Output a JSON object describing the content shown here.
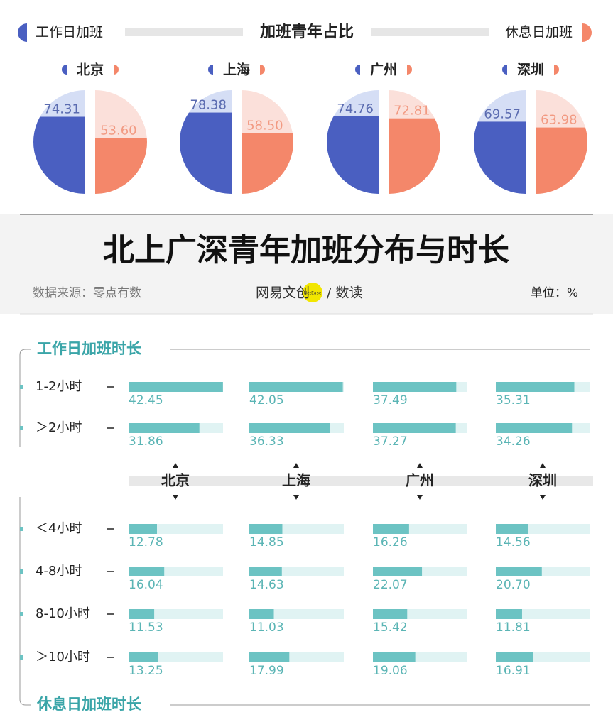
{
  "header": {
    "legend_left": "工作日加班",
    "title": "加班青年占比",
    "legend_right": "休息日加班"
  },
  "cities": [
    "北京",
    "上海",
    "广州",
    "深圳"
  ],
  "pies": [
    {
      "workday": 74.31,
      "workday_label": "74.31",
      "weekend": 53.6,
      "weekend_label": "53.60"
    },
    {
      "workday": 78.38,
      "workday_label": "78.38",
      "weekend": 58.5,
      "weekend_label": "58.50"
    },
    {
      "workday": 74.76,
      "workday_label": "74.76",
      "weekend": 72.81,
      "weekend_label": "72.81"
    },
    {
      "workday": 69.57,
      "workday_label": "69.57",
      "weekend": 63.98,
      "weekend_label": "63.98"
    }
  ],
  "pie_scale": [
    0,
    100
  ],
  "banner": {
    "title": "北上广深青年加班分布与时长",
    "source": "数据来源：零点有数",
    "logo": "网易文创",
    "logo_badge": "NetEase",
    "logo_suffix": "/ 数读",
    "unit": "单位：%"
  },
  "bar_scale": [
    0,
    42.5
  ],
  "workday": {
    "title": "工作日加班时长",
    "rows": [
      {
        "label": "1-2小时",
        "values": [
          42.45,
          42.05,
          37.49,
          35.31
        ],
        "value_labels": [
          "42.45",
          "42.05",
          "37.49",
          "35.31"
        ]
      },
      {
        "label": "＞2小时",
        "values": [
          31.86,
          36.33,
          37.27,
          34.26
        ],
        "value_labels": [
          "31.86",
          "36.33",
          "37.27",
          "34.26"
        ]
      }
    ]
  },
  "weekend": {
    "title": "休息日加班时长",
    "rows": [
      {
        "label": "＜4小时",
        "values": [
          12.78,
          14.85,
          16.26,
          14.56
        ],
        "value_labels": [
          "12.78",
          "14.85",
          "16.26",
          "14.56"
        ]
      },
      {
        "label": "4-8小时",
        "values": [
          16.04,
          14.63,
          22.07,
          20.7
        ],
        "value_labels": [
          "16.04",
          "14.63",
          "22.07",
          "20.70"
        ]
      },
      {
        "label": "8-10小时",
        "values": [
          11.53,
          11.03,
          15.42,
          11.81
        ],
        "value_labels": [
          "11.53",
          "11.03",
          "15.42",
          "11.81"
        ]
      },
      {
        "label": "＞10小时",
        "values": [
          13.25,
          17.99,
          19.06,
          16.91
        ],
        "value_labels": [
          "13.25",
          "17.99",
          "19.06",
          "16.91"
        ]
      }
    ]
  }
}
